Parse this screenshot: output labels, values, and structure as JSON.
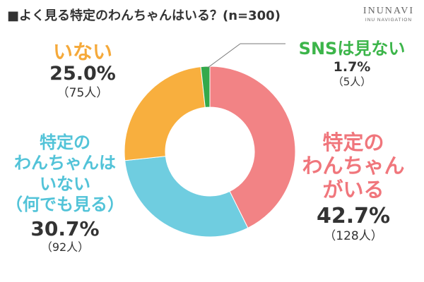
{
  "header": {
    "title": "■よく見る特定のわんちゃんはいる？(n=300)",
    "brand_name": "INUNAVI",
    "brand_sub": "INU NAVIGATION"
  },
  "chart_data": {
    "type": "pie",
    "variant": "donut",
    "title": "■よく見る特定のわんちゃんはいる？(n=300)",
    "n": 300,
    "slices": [
      {
        "key": "yes",
        "label": "特定の\nわんちゃん\nがいる",
        "percent": 42.7,
        "percent_text": "42.7%",
        "count": 128,
        "count_text": "（128人）",
        "color": "#f28385"
      },
      {
        "key": "any",
        "label": "特定の\nわんちゃんは\nいない\n（何でも見る）",
        "percent": 30.7,
        "percent_text": "30.7%",
        "count": 92,
        "count_text": "（92人）",
        "color": "#6fcde0"
      },
      {
        "key": "none",
        "label": "いない",
        "percent": 25.0,
        "percent_text": "25.0%",
        "count": 75,
        "count_text": "（75人）",
        "color": "#f8af3e"
      },
      {
        "key": "sns",
        "label": "SNSは見ない",
        "percent": 1.7,
        "percent_text": "1.7%",
        "count": 5,
        "count_text": "（5人）",
        "color": "#34a94b"
      }
    ],
    "start": "top",
    "direction": "clockwise"
  }
}
